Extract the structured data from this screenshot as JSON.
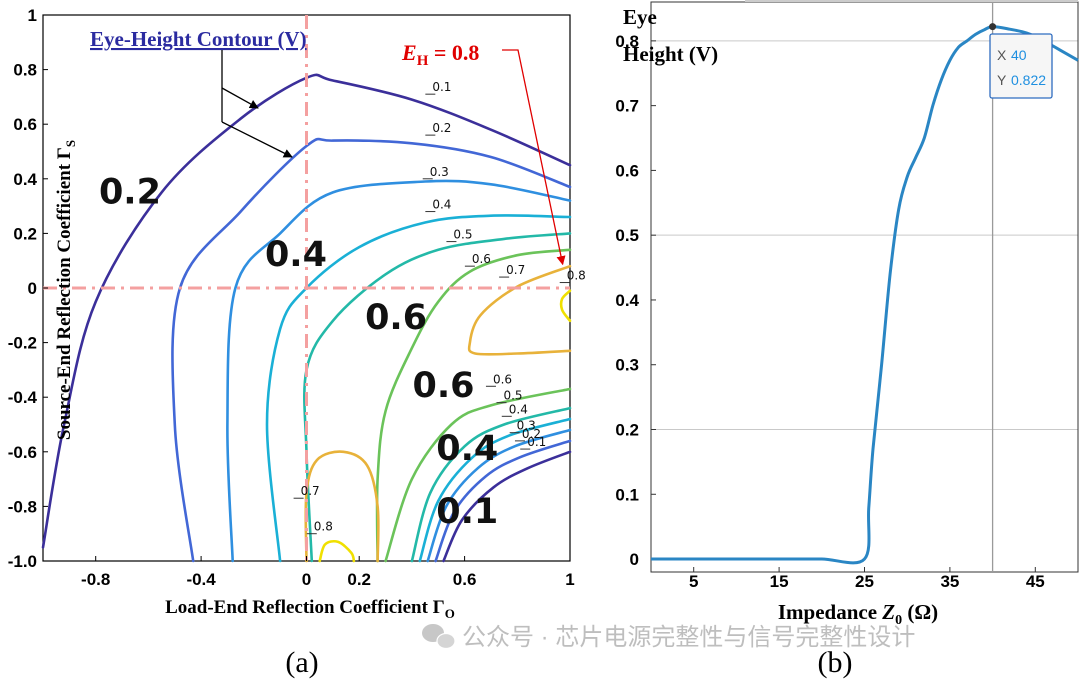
{
  "chart_data": [
    {
      "panel_label": "(a)",
      "type": "contour",
      "title": "Eye-Height Contour (V)",
      "xlabel": "Load-End Reflection Coefficient Γ",
      "xlabel_sub": "O",
      "ylabel": "Source-End Reflection Coefficient Γ",
      "ylabel_sub": "S",
      "xlim": [
        -1,
        1
      ],
      "ylim": [
        -1,
        1
      ],
      "xticks": [
        "-0.8",
        "-0.4",
        "0",
        "0.2",
        "0.6",
        "1"
      ],
      "xtick_values": [
        -0.8,
        -0.4,
        0,
        0.2,
        0.6,
        1
      ],
      "yticks": [
        "1",
        "0.8",
        "0.6",
        "0.4",
        "0.2",
        "0",
        "-0.2",
        "-0.4",
        "-0.6",
        "-0.8",
        "-1.0"
      ],
      "ytick_values": [
        1,
        0.8,
        0.6,
        0.4,
        0.2,
        0,
        -0.2,
        -0.4,
        -0.6,
        -0.8,
        -1.0
      ],
      "levels": [
        0.1,
        0.2,
        0.3,
        0.4,
        0.5,
        0.6,
        0.7,
        0.8
      ],
      "colors": [
        "#3b2f9a",
        "#4267d6",
        "#2f8fe0",
        "#1ab0d6",
        "#23b9a8",
        "#6bc35a",
        "#e8b23a",
        "#f0e000"
      ],
      "upper_contours": [
        {
          "level": 0.1,
          "points": [
            [
              -1,
              -0.95
            ],
            [
              -0.92,
              -0.5
            ],
            [
              -0.8,
              -0.05
            ],
            [
              -0.55,
              0.35
            ],
            [
              -0.25,
              0.62
            ],
            [
              0,
              0.77
            ],
            [
              0.1,
              0.76
            ],
            [
              0.4,
              0.69
            ],
            [
              0.7,
              0.58
            ],
            [
              1,
              0.45
            ]
          ]
        },
        {
          "level": 0.2,
          "points": [
            [
              -0.43,
              -1
            ],
            [
              -0.5,
              -0.5
            ],
            [
              -0.48,
              0
            ],
            [
              -0.25,
              0.28
            ],
            [
              0,
              0.52
            ],
            [
              0.1,
              0.54
            ],
            [
              0.4,
              0.53
            ],
            [
              0.7,
              0.48
            ],
            [
              1,
              0.37
            ]
          ]
        },
        {
          "level": 0.3,
          "points": [
            [
              -0.28,
              -1
            ],
            [
              -0.3,
              -0.5
            ],
            [
              -0.27,
              0
            ],
            [
              -0.1,
              0.2
            ],
            [
              0.1,
              0.35
            ],
            [
              0.45,
              0.39
            ],
            [
              0.7,
              0.38
            ],
            [
              1,
              0.32
            ]
          ]
        },
        {
          "level": 0.4,
          "points": [
            [
              -0.1,
              -1
            ],
            [
              -0.15,
              -0.5
            ],
            [
              -0.1,
              -0.15
            ],
            [
              0,
              0
            ],
            [
              0.2,
              0.15
            ],
            [
              0.45,
              0.24
            ],
            [
              0.7,
              0.265
            ],
            [
              1,
              0.26
            ]
          ]
        },
        {
          "level": 0.5,
          "points": [
            [
              0.02,
              -1
            ],
            [
              0,
              -0.6
            ],
            [
              0,
              -0.3
            ],
            [
              0.1,
              -0.12
            ],
            [
              0.3,
              0.05
            ],
            [
              0.5,
              0.14
            ],
            [
              0.75,
              0.18
            ],
            [
              1,
              0.2
            ]
          ]
        },
        {
          "level": 0.6,
          "points": [
            [
              0.27,
              -1
            ],
            [
              0.27,
              -0.7
            ],
            [
              0.3,
              -0.45
            ],
            [
              0.4,
              -0.22
            ],
            [
              0.5,
              -0.05
            ],
            [
              0.62,
              0.06
            ],
            [
              0.8,
              0.12
            ],
            [
              1,
              0.14
            ]
          ]
        }
      ],
      "lower_contours": [
        {
          "level": 0.6,
          "points": [
            [
              0.3,
              -1
            ],
            [
              0.4,
              -0.7
            ],
            [
              0.55,
              -0.5
            ],
            [
              0.7,
              -0.43
            ],
            [
              1,
              -0.37
            ]
          ]
        },
        {
          "level": 0.5,
          "points": [
            [
              0.4,
              -1
            ],
            [
              0.47,
              -0.75
            ],
            [
              0.6,
              -0.58
            ],
            [
              0.75,
              -0.5
            ],
            [
              1,
              -0.44
            ]
          ]
        },
        {
          "level": 0.4,
          "points": [
            [
              0.43,
              -1
            ],
            [
              0.5,
              -0.78
            ],
            [
              0.63,
              -0.62
            ],
            [
              0.77,
              -0.54
            ],
            [
              1,
              -0.48
            ]
          ]
        },
        {
          "level": 0.3,
          "points": [
            [
              0.46,
              -1
            ],
            [
              0.53,
              -0.8
            ],
            [
              0.65,
              -0.66
            ],
            [
              0.79,
              -0.58
            ],
            [
              1,
              -0.52
            ]
          ]
        },
        {
          "level": 0.2,
          "points": [
            [
              0.49,
              -1
            ],
            [
              0.56,
              -0.82
            ],
            [
              0.68,
              -0.69
            ],
            [
              0.81,
              -0.62
            ],
            [
              1,
              -0.56
            ]
          ]
        },
        {
          "level": 0.1,
          "points": [
            [
              0.52,
              -1
            ],
            [
              0.59,
              -0.85
            ],
            [
              0.71,
              -0.73
            ],
            [
              0.84,
              -0.66
            ],
            [
              1,
              -0.6
            ]
          ]
        }
      ],
      "closed_contours": [
        {
          "level": 0.7,
          "points": [
            [
              1,
              0.08
            ],
            [
              0.8,
              0.005
            ],
            [
              0.66,
              -0.1
            ],
            [
              0.62,
              -0.2
            ],
            [
              0.64,
              -0.24
            ],
            [
              0.8,
              -0.24
            ],
            [
              1,
              -0.23
            ]
          ]
        },
        {
          "level": 0.7,
          "points": [
            [
              0,
              -1
            ],
            [
              0,
              -0.75
            ],
            [
              0.04,
              -0.63
            ],
            [
              0.14,
              -0.6
            ],
            [
              0.23,
              -0.65
            ],
            [
              0.27,
              -0.8
            ],
            [
              0.27,
              -1
            ]
          ]
        },
        {
          "level": 0.8,
          "points": [
            [
              0.05,
              -1
            ],
            [
              0.07,
              -0.94
            ],
            [
              0.12,
              -0.93
            ],
            [
              0.17,
              -0.97
            ],
            [
              0.18,
              -1
            ]
          ]
        },
        {
          "level": 0.8,
          "points": [
            [
              1,
              -0.01
            ],
            [
              0.97,
              -0.04
            ],
            [
              0.97,
              -0.08
            ],
            [
              1,
              -0.12
            ]
          ]
        }
      ],
      "contour_labels": [
        {
          "text": "0.1",
          "x": 0.47,
          "y": 0.71
        },
        {
          "text": "0.2",
          "x": 0.47,
          "y": 0.56
        },
        {
          "text": "0.3",
          "x": 0.46,
          "y": 0.4
        },
        {
          "text": "0.4",
          "x": 0.47,
          "y": 0.28
        },
        {
          "text": "0.5",
          "x": 0.55,
          "y": 0.17
        },
        {
          "text": "0.6",
          "x": 0.62,
          "y": 0.08
        },
        {
          "text": "0.7",
          "x": 0.75,
          "y": 0.04
        },
        {
          "text": "0.8",
          "x": 0.98,
          "y": 0.02
        },
        {
          "text": "0.6",
          "x": 0.7,
          "y": -0.36
        },
        {
          "text": "0.5",
          "x": 0.74,
          "y": -0.42
        },
        {
          "text": "0.4",
          "x": 0.76,
          "y": -0.47
        },
        {
          "text": "0.3",
          "x": 0.79,
          "y": -0.53
        },
        {
          "text": "0.2",
          "x": 0.81,
          "y": -0.56
        },
        {
          "text": "0.1",
          "x": 0.83,
          "y": -0.59
        },
        {
          "text": "0.7",
          "x": -0.03,
          "y": -0.77
        },
        {
          "text": "0.8",
          "x": 0.02,
          "y": -0.9
        }
      ],
      "big_labels": [
        {
          "text": "0.2",
          "x": -0.67,
          "y": 0.31
        },
        {
          "text": "0.4",
          "x": -0.04,
          "y": 0.08
        },
        {
          "text": "0.6",
          "x": 0.34,
          "y": -0.15
        },
        {
          "text": "0.6",
          "x": 0.52,
          "y": -0.4
        },
        {
          "text": "0.4",
          "x": 0.61,
          "y": -0.63
        },
        {
          "text": "0.1",
          "x": 0.61,
          "y": -0.86
        }
      ],
      "reference_lines": {
        "x": 0,
        "y": 0
      },
      "annotation": {
        "text": "E",
        "sub": "H",
        "suffix": " = 0.8",
        "target_x": 0.98,
        "target_y": 0.05
      }
    },
    {
      "panel_label": "(b)",
      "type": "line",
      "ylabel_line1": "Eye",
      "ylabel_line2": "Height (V)",
      "xlabel_prefix": "Impedance ",
      "xlabel_var": "Z",
      "xlabel_sub": "0",
      "xlabel_suffix": " (Ω)",
      "xlim": [
        0,
        50
      ],
      "ylim": [
        -0.02,
        0.86
      ],
      "xticks": [
        "5",
        "15",
        "25",
        "35",
        "45"
      ],
      "xtick_values": [
        5,
        15,
        25,
        35,
        45
      ],
      "yticks": [
        "0",
        "0.1",
        "0.2",
        "0.3",
        "0.4",
        "0.5",
        "0.6",
        "0.7",
        "0.8"
      ],
      "ytick_values": [
        0,
        0.1,
        0.2,
        0.3,
        0.4,
        0.5,
        0.6,
        0.7,
        0.8
      ],
      "gridlines_y": [
        0.2,
        0.5,
        0.8
      ],
      "series": [
        {
          "name": "Eye Height",
          "x": [
            0,
            5,
            10,
            15,
            20,
            25,
            25.5,
            26,
            27,
            28,
            29,
            30,
            31,
            32,
            33,
            34,
            35,
            36,
            37,
            38,
            39,
            40,
            42,
            44,
            46,
            48,
            50
          ],
          "y": [
            0,
            0,
            0,
            0,
            0,
            0,
            0.08,
            0.17,
            0.3,
            0.44,
            0.54,
            0.59,
            0.62,
            0.65,
            0.7,
            0.74,
            0.77,
            0.79,
            0.8,
            0.81,
            0.817,
            0.822,
            0.818,
            0.812,
            0.8,
            0.785,
            0.77
          ]
        }
      ],
      "marker": {
        "x": 40,
        "y": 0.822
      },
      "tooltip": {
        "x_label": "X",
        "x_value": "40",
        "y_label": "Y",
        "y_value": "0.822"
      }
    }
  ],
  "watermark": "公众号 · 芯片电源完整性与信号完整性设计"
}
